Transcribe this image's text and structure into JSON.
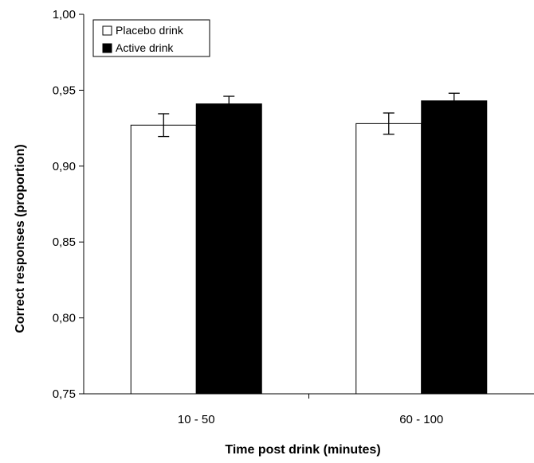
{
  "chart_data": {
    "type": "bar",
    "categories": [
      "10 - 50",
      "60 - 100"
    ],
    "series": [
      {
        "name": "Placebo drink",
        "values": [
          0.927,
          0.928
        ],
        "errors": [
          0.0075,
          0.007
        ],
        "color": "#ffffff"
      },
      {
        "name": "Active drink",
        "values": [
          0.941,
          0.943
        ],
        "errors": [
          0.005,
          0.005
        ],
        "color": "#000000"
      }
    ],
    "xlabel": "Time post drink (minutes)",
    "ylabel": "Correct responses (proportion)",
    "ylim": [
      0.75,
      1.0
    ],
    "yticks": [
      "0,75",
      "0,80",
      "0,85",
      "0,90",
      "0,95",
      "1,00"
    ],
    "ytick_values": [
      0.75,
      0.8,
      0.85,
      0.9,
      0.95,
      1.0
    ],
    "grid": false,
    "legend_position": "top-left"
  }
}
